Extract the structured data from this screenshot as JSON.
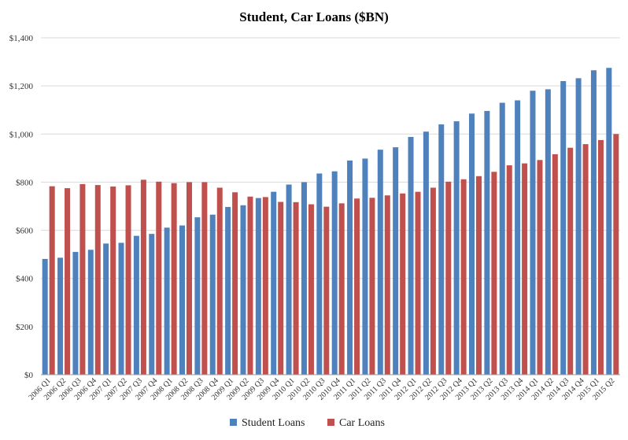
{
  "chart_data": {
    "type": "bar",
    "title": "Student, Car Loans ($BN)",
    "xlabel": "",
    "ylabel": "",
    "ylim": [
      0,
      1400
    ],
    "yticks": [
      "$0",
      "$200",
      "$400",
      "$600",
      "$800",
      "$1,000",
      "$1,200",
      "$1,400"
    ],
    "ytick_values": [
      0,
      200,
      400,
      600,
      800,
      1000,
      1200,
      1400
    ],
    "grid": true,
    "legend": "bottom",
    "categories": [
      "2006 Q1",
      "2006 Q2",
      "2006 Q3",
      "2006 Q4",
      "2007 Q1",
      "2007 Q2",
      "2007 Q3",
      "2007 Q4",
      "2008 Q1",
      "2008 Q2",
      "2008 Q3",
      "2008 Q4",
      "2009 Q1",
      "2009 Q2",
      "2009 Q3",
      "2009 Q4",
      "2010 Q1",
      "2010 Q2",
      "2010 Q3",
      "2010 Q4",
      "2011 Q1",
      "2011 Q2",
      "2011 Q3",
      "2011 Q4",
      "2012 Q1",
      "2012 Q2",
      "2012 Q3",
      "2012 Q4",
      "2013 Q1",
      "2013 Q2",
      "2013 Q3",
      "2013 Q4",
      "2014 Q1",
      "2014 Q2",
      "2014 Q3",
      "2014 Q4",
      "2015 Q1",
      "2015 Q2"
    ],
    "series": [
      {
        "name": "Student Loans",
        "color": "#4f81bd",
        "values": [
          481,
          486,
          510,
          519,
          545,
          548,
          577,
          585,
          611,
          620,
          654,
          665,
          697,
          704,
          734,
          760,
          790,
          800,
          836,
          845,
          890,
          898,
          935,
          945,
          988,
          1010,
          1040,
          1053,
          1085,
          1096,
          1130,
          1140,
          1180,
          1186,
          1220,
          1232,
          1265,
          1275
        ]
      },
      {
        "name": "Car Loans",
        "color": "#c0504d",
        "values": [
          783,
          775,
          792,
          788,
          782,
          787,
          810,
          802,
          796,
          800,
          800,
          777,
          758,
          740,
          738,
          718,
          717,
          708,
          698,
          712,
          732,
          735,
          745,
          753,
          760,
          777,
          802,
          812,
          825,
          843,
          870,
          878,
          892,
          916,
          943,
          958,
          975,
          1000
        ]
      }
    ]
  }
}
